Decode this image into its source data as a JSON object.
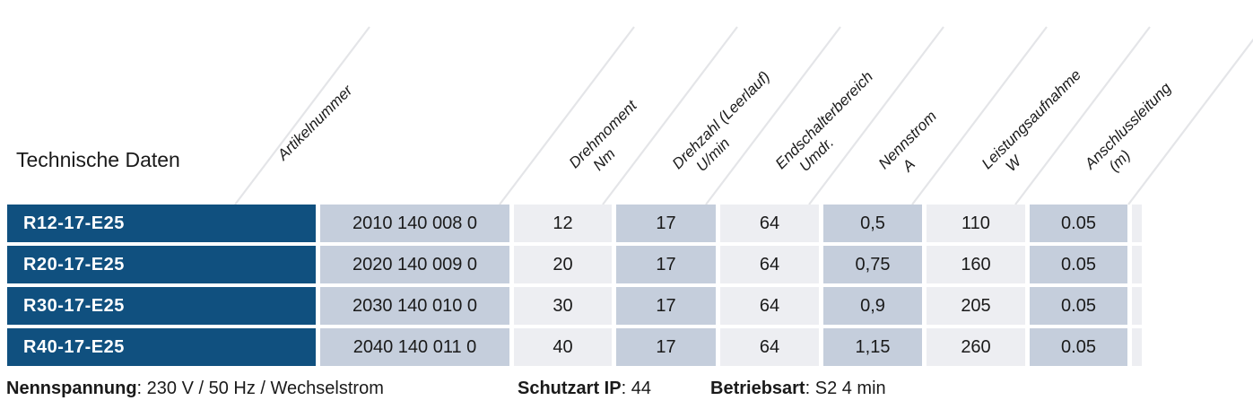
{
  "title": "Technische Daten",
  "table": {
    "header": {
      "columns": [
        {
          "label": "Artikelnummer",
          "unit": ""
        },
        {
          "label": "Drehmoment",
          "unit": "Nm"
        },
        {
          "label": "Drehzahl (Leerlauf)",
          "unit": "U/min"
        },
        {
          "label": "Endschalterbereich",
          "unit": "Umdr."
        },
        {
          "label": "Nennstrom",
          "unit": "A"
        },
        {
          "label": "Leistungsaufnahme",
          "unit": "W"
        },
        {
          "label": "Anschlussleitung",
          "unit": "(m)"
        }
      ]
    },
    "rows": [
      {
        "model": "R12-17-E25",
        "values": [
          "2010 140 008 0",
          "12",
          "17",
          "64",
          "0,5",
          "110",
          "0.05"
        ]
      },
      {
        "model": "R20-17-E25",
        "values": [
          "2020 140 009 0",
          "20",
          "17",
          "64",
          "0,75",
          "160",
          "0.05"
        ]
      },
      {
        "model": "R30-17-E25",
        "values": [
          "2030 140 010 0",
          "30",
          "17",
          "64",
          "0,9",
          "205",
          "0.05"
        ]
      },
      {
        "model": "R40-17-E25",
        "values": [
          "2040 140 011 0",
          "40",
          "17",
          "64",
          "1,15",
          "260",
          "0.05"
        ]
      }
    ]
  },
  "footer": {
    "separator": ": ",
    "items": [
      {
        "label": "Nennspannung",
        "value": "230 V / 50 Hz / Wechselstrom"
      },
      {
        "label": "Schutzart IP",
        "value": "44"
      },
      {
        "label": "Betriebsart",
        "value": "S2 4 min"
      }
    ]
  },
  "colors": {
    "model_cell_bg": "#10507f",
    "model_cell_text": "#ffffff",
    "cell_dark_bg": "#c5cedc",
    "cell_light_bg": "#edeef2",
    "header_line": "#e4e5e8",
    "text": "#1a1a1a"
  }
}
